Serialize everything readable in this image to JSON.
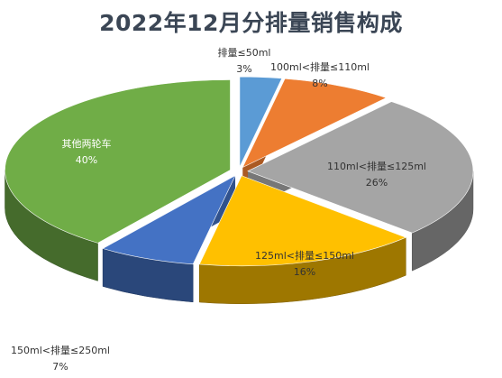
{
  "chart_data": {
    "type": "pie",
    "title": "2022年12月分排量销售构成",
    "categories": [
      "排量≤50ml",
      "100ml<排量≤110ml",
      "110ml<排量≤125ml",
      "125ml<排量≤150ml",
      "150ml<排量≤250ml",
      "其他两轮车"
    ],
    "values": [
      3,
      8,
      26,
      16,
      7,
      40
    ],
    "value_labels": [
      "3%",
      "8%",
      "26%",
      "16%",
      "7%",
      "40%"
    ],
    "colors": [
      "#5b9bd5",
      "#ed7d31",
      "#a5a5a5",
      "#ffc000",
      "#4472c4",
      "#70ad47"
    ],
    "style": "3d-exploded",
    "legend": "none"
  }
}
